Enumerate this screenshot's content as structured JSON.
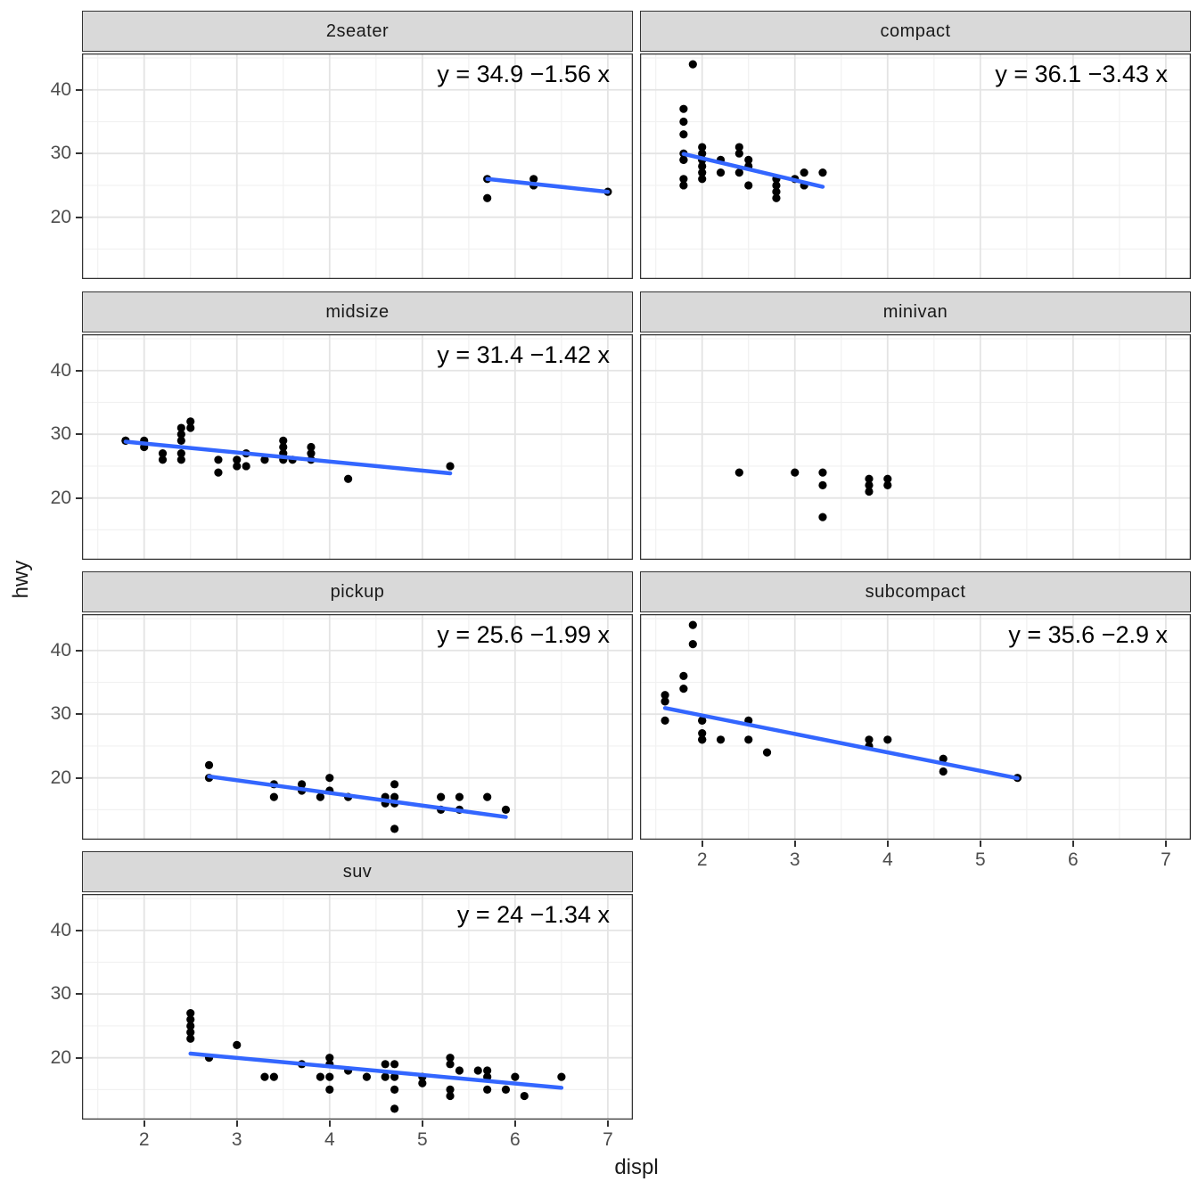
{
  "chart_data": {
    "type": "scatter",
    "title": "",
    "xlabel": "displ",
    "ylabel": "hwy",
    "x_ticks": [
      2,
      3,
      4,
      5,
      6,
      7
    ],
    "y_ticks": [
      20,
      30,
      40
    ],
    "x_minor": [
      1.5,
      2.5,
      3.5,
      4.5,
      5.5,
      6.5
    ],
    "y_minor": [
      15,
      25,
      35,
      45
    ],
    "xlim": [
      1.33,
      7.27
    ],
    "ylim": [
      10.3,
      45.7
    ],
    "grid": "on",
    "legend": "none",
    "colors": {
      "trend_line": "#3366FF",
      "point": "#000000",
      "strip_bg": "#D9D9D9",
      "panel_border": "#333333",
      "grid_major": "#E4E4E4",
      "grid_minor": "#F1F1F1",
      "tick_label": "#4D4D4D"
    },
    "facets": [
      {
        "label": "2seater",
        "equation": "y = 34.9 −1.56 x",
        "intercept": 34.9,
        "slope": -1.56,
        "trend_x": [
          5.7,
          7.0
        ],
        "points": [
          [
            5.7,
            26
          ],
          [
            5.7,
            23
          ],
          [
            6.2,
            26
          ],
          [
            6.2,
            25
          ],
          [
            7.0,
            24
          ]
        ]
      },
      {
        "label": "compact",
        "equation": "y = 36.1 −3.43 x",
        "intercept": 36.1,
        "slope": -3.43,
        "trend_x": [
          1.8,
          3.3
        ],
        "points": [
          [
            1.9,
            44
          ],
          [
            1.8,
            37
          ],
          [
            1.8,
            35
          ],
          [
            1.8,
            33
          ],
          [
            1.8,
            30
          ],
          [
            1.8,
            29
          ],
          [
            1.8,
            29
          ],
          [
            1.8,
            26
          ],
          [
            1.8,
            25
          ],
          [
            2.0,
            31
          ],
          [
            2.0,
            30
          ],
          [
            2.0,
            29
          ],
          [
            2.0,
            29
          ],
          [
            2.0,
            28
          ],
          [
            2.0,
            27
          ],
          [
            2.0,
            26
          ],
          [
            2.2,
            29
          ],
          [
            2.2,
            27
          ],
          [
            2.4,
            31
          ],
          [
            2.4,
            30
          ],
          [
            2.4,
            27
          ],
          [
            2.5,
            29
          ],
          [
            2.5,
            28
          ],
          [
            2.5,
            25
          ],
          [
            2.8,
            26
          ],
          [
            2.8,
            25
          ],
          [
            2.8,
            24
          ],
          [
            2.8,
            23
          ],
          [
            3.0,
            26
          ],
          [
            3.1,
            27
          ],
          [
            3.1,
            25
          ],
          [
            3.3,
            27
          ]
        ]
      },
      {
        "label": "midsize",
        "equation": "y = 31.4 −1.42 x",
        "intercept": 31.4,
        "slope": -1.42,
        "trend_x": [
          1.8,
          5.3
        ],
        "points": [
          [
            1.8,
            29
          ],
          [
            1.8,
            29
          ],
          [
            2.0,
            29
          ],
          [
            2.0,
            28
          ],
          [
            2.2,
            27
          ],
          [
            2.2,
            26
          ],
          [
            2.4,
            31
          ],
          [
            2.4,
            30
          ],
          [
            2.4,
            29
          ],
          [
            2.4,
            27
          ],
          [
            2.4,
            26
          ],
          [
            2.5,
            32
          ],
          [
            2.5,
            31
          ],
          [
            2.8,
            26
          ],
          [
            2.8,
            24
          ],
          [
            3.0,
            26
          ],
          [
            3.0,
            25
          ],
          [
            3.1,
            27
          ],
          [
            3.1,
            25
          ],
          [
            3.3,
            26
          ],
          [
            3.5,
            29
          ],
          [
            3.5,
            28
          ],
          [
            3.5,
            27
          ],
          [
            3.5,
            26
          ],
          [
            3.6,
            26
          ],
          [
            3.8,
            28
          ],
          [
            3.8,
            27
          ],
          [
            3.8,
            26
          ],
          [
            4.2,
            23
          ],
          [
            5.3,
            25
          ]
        ]
      },
      {
        "label": "minivan",
        "equation": null,
        "intercept": null,
        "slope": null,
        "trend_x": null,
        "points": [
          [
            2.4,
            24
          ],
          [
            3.0,
            24
          ],
          [
            3.3,
            24
          ],
          [
            3.3,
            22
          ],
          [
            3.3,
            17
          ],
          [
            3.8,
            23
          ],
          [
            3.8,
            22
          ],
          [
            3.8,
            21
          ],
          [
            4.0,
            23
          ],
          [
            4.0,
            22
          ]
        ]
      },
      {
        "label": "pickup",
        "equation": "y = 25.6 −1.99 x",
        "intercept": 25.6,
        "slope": -1.99,
        "trend_x": [
          2.7,
          5.9
        ],
        "points": [
          [
            2.7,
            22
          ],
          [
            2.7,
            20
          ],
          [
            3.4,
            19
          ],
          [
            3.4,
            17
          ],
          [
            3.7,
            19
          ],
          [
            3.7,
            18
          ],
          [
            3.9,
            17
          ],
          [
            4.0,
            20
          ],
          [
            4.0,
            18
          ],
          [
            4.2,
            17
          ],
          [
            4.6,
            17
          ],
          [
            4.6,
            16
          ],
          [
            4.7,
            19
          ],
          [
            4.7,
            17
          ],
          [
            4.7,
            16
          ],
          [
            4.7,
            12
          ],
          [
            5.2,
            17
          ],
          [
            5.2,
            15
          ],
          [
            5.4,
            17
          ],
          [
            5.4,
            15
          ],
          [
            5.7,
            17
          ],
          [
            5.9,
            15
          ]
        ]
      },
      {
        "label": "subcompact",
        "equation": "y = 35.6 −2.9 x",
        "intercept": 35.6,
        "slope": -2.9,
        "trend_x": [
          1.6,
          5.4
        ],
        "points": [
          [
            1.9,
            44
          ],
          [
            1.9,
            41
          ],
          [
            1.8,
            36
          ],
          [
            1.8,
            34
          ],
          [
            1.6,
            33
          ],
          [
            1.6,
            32
          ],
          [
            1.6,
            32
          ],
          [
            1.6,
            29
          ],
          [
            2.0,
            29
          ],
          [
            2.0,
            29
          ],
          [
            2.0,
            27
          ],
          [
            2.0,
            26
          ],
          [
            2.0,
            26
          ],
          [
            2.2,
            26
          ],
          [
            2.5,
            29
          ],
          [
            2.5,
            26
          ],
          [
            2.7,
            24
          ],
          [
            3.8,
            26
          ],
          [
            3.8,
            25
          ],
          [
            4.0,
            26
          ],
          [
            4.6,
            23
          ],
          [
            4.6,
            21
          ],
          [
            5.4,
            20
          ]
        ]
      },
      {
        "label": "suv",
        "equation": "y = 24 −1.34 x",
        "intercept": 24,
        "slope": -1.34,
        "trend_x": [
          2.5,
          6.5
        ],
        "points": [
          [
            2.5,
            27
          ],
          [
            2.5,
            26
          ],
          [
            2.5,
            25
          ],
          [
            2.5,
            24
          ],
          [
            2.5,
            23
          ],
          [
            2.7,
            20
          ],
          [
            3.0,
            22
          ],
          [
            3.3,
            17
          ],
          [
            3.4,
            17
          ],
          [
            3.7,
            19
          ],
          [
            3.9,
            17
          ],
          [
            4.0,
            20
          ],
          [
            4.0,
            19
          ],
          [
            4.0,
            17
          ],
          [
            4.0,
            15
          ],
          [
            4.2,
            18
          ],
          [
            4.4,
            17
          ],
          [
            4.6,
            19
          ],
          [
            4.6,
            17
          ],
          [
            4.7,
            19
          ],
          [
            4.7,
            17
          ],
          [
            4.7,
            15
          ],
          [
            4.7,
            12
          ],
          [
            5.0,
            17
          ],
          [
            5.0,
            16
          ],
          [
            5.3,
            20
          ],
          [
            5.3,
            19
          ],
          [
            5.3,
            15
          ],
          [
            5.3,
            14
          ],
          [
            5.4,
            18
          ],
          [
            5.6,
            18
          ],
          [
            5.7,
            18
          ],
          [
            5.7,
            17
          ],
          [
            5.7,
            15
          ],
          [
            5.9,
            15
          ],
          [
            6.0,
            17
          ],
          [
            6.1,
            14
          ],
          [
            6.5,
            17
          ]
        ]
      }
    ]
  }
}
